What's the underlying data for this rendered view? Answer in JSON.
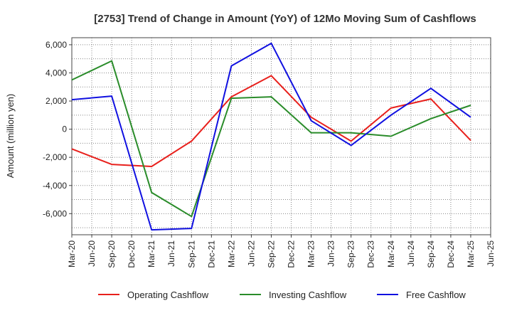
{
  "chart_data": {
    "type": "line",
    "title": "[2753]  Trend of Change in Amount (YoY) of 12Mo Moving Sum of Cashflows",
    "xlabel": "",
    "ylabel": "Amount (million yen)",
    "ylim": [
      -7500,
      6500
    ],
    "yticks": [
      6000,
      4000,
      2000,
      0,
      -2000,
      -4000,
      -6000
    ],
    "ytick_labels": [
      "6,000",
      "4,000",
      "2,000",
      "0",
      "-2,000",
      "-4,000",
      "-6,000"
    ],
    "categories": [
      "Mar-20",
      "Jun-20",
      "Sep-20",
      "Dec-20",
      "Mar-21",
      "Jun-21",
      "Sep-21",
      "Dec-21",
      "Mar-22",
      "Jun-22",
      "Sep-22",
      "Dec-22",
      "Mar-23",
      "Jun-23",
      "Sep-23",
      "Dec-23",
      "Mar-24",
      "Jun-24",
      "Sep-24",
      "Dec-24",
      "Mar-25",
      "Jun-25"
    ],
    "grid": true,
    "legend_position": "bottom",
    "series": [
      {
        "name": "Operating Cashflow",
        "color": "#e8201c",
        "values": [
          -1400,
          null,
          -2500,
          null,
          -2650,
          null,
          -850,
          null,
          2300,
          null,
          3800,
          null,
          850,
          null,
          -850,
          null,
          1500,
          null,
          2150,
          null,
          -800,
          null
        ]
      },
      {
        "name": "Investing Cashflow",
        "color": "#2a8c2a",
        "values": [
          3500,
          null,
          4850,
          null,
          -4500,
          null,
          -6200,
          null,
          2200,
          null,
          2300,
          null,
          -250,
          null,
          -250,
          null,
          -500,
          null,
          750,
          null,
          1700,
          null
        ]
      },
      {
        "name": "Free Cashflow",
        "color": "#1010e0",
        "values": [
          2100,
          null,
          2350,
          null,
          -7150,
          null,
          -7050,
          null,
          4500,
          null,
          6100,
          null,
          600,
          null,
          -1150,
          null,
          1000,
          null,
          2900,
          null,
          850,
          null
        ]
      }
    ]
  }
}
